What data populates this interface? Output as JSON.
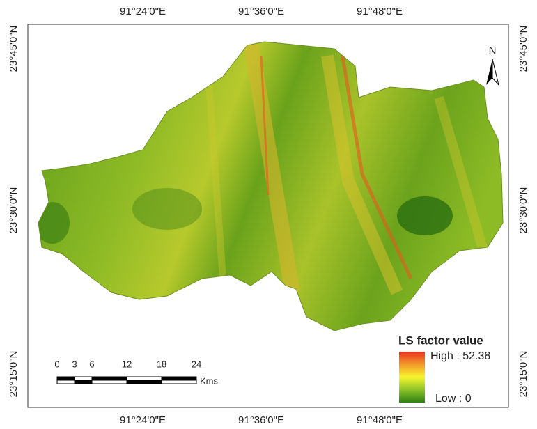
{
  "map": {
    "top_labels": [
      "91°24'0\"E",
      "91°36'0\"E",
      "91°48'0\"E"
    ],
    "bottom_labels": [
      "91°24'0\"E",
      "91°36'0\"E",
      "91°48'0\"E"
    ],
    "left_labels": [
      "23°45'0\"N",
      "23°30'0\"N",
      "23°15'0\"N"
    ],
    "right_labels": [
      "23°45'0\"N",
      "23°30'0\"N",
      "23°15'0\"N"
    ],
    "north": "N",
    "scale": {
      "ticks": [
        0,
        3,
        6,
        12,
        18,
        24
      ],
      "unit": "Kms"
    },
    "legend": {
      "title": "LS factor value",
      "high": "High : 52.38",
      "low": "Low : 0"
    }
  }
}
